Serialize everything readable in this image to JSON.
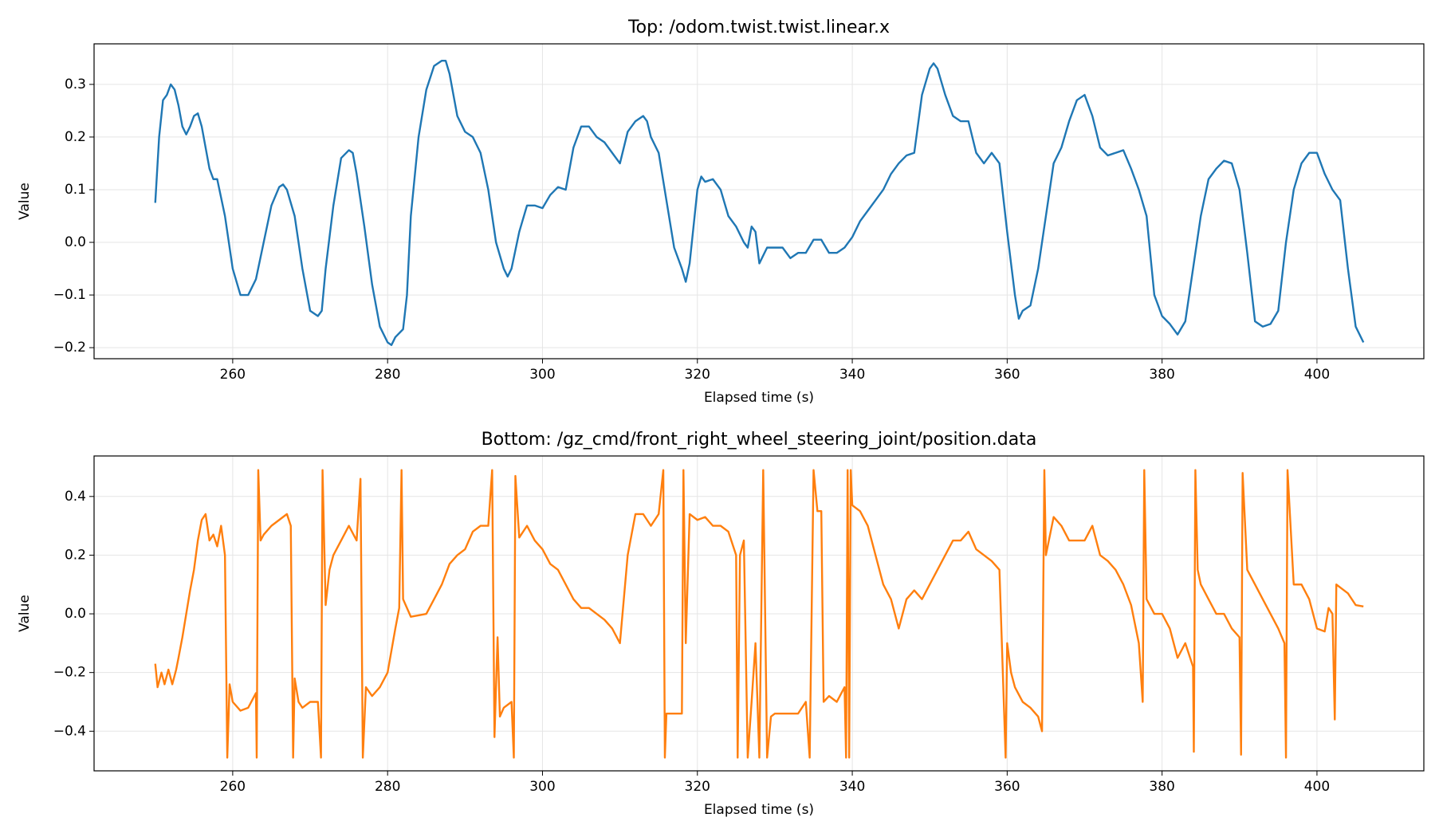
{
  "chart_data": [
    {
      "type": "line",
      "title": "Top: /odom.twist.twist.linear.x",
      "x_label": "Elapsed time (s)",
      "y_label": "Value",
      "color": "#1f77b4",
      "grid": true,
      "xlim": [
        242.1,
        413.8
      ],
      "ylim": [
        -0.221,
        0.377
      ],
      "xticks": [
        260,
        280,
        300,
        320,
        340,
        360,
        380,
        400
      ],
      "yticks": [
        {
          "value": -0.2,
          "label": "−0.2"
        },
        {
          "value": -0.1,
          "label": "−0.1"
        },
        {
          "value": 0,
          "label": "0.0"
        },
        {
          "value": 0.1,
          "label": "0.1"
        },
        {
          "value": 0.2,
          "label": "0.2"
        },
        {
          "value": 0.3,
          "label": "0.3"
        }
      ],
      "x": [
        250,
        250.5,
        251,
        251.5,
        252,
        252.5,
        253,
        253.5,
        254,
        254.5,
        255,
        255.5,
        256,
        257,
        257.5,
        258,
        259,
        260,
        261,
        262,
        263,
        264,
        265,
        266,
        266.5,
        267,
        268,
        269,
        270,
        271,
        271.5,
        272,
        273,
        274,
        275,
        275.5,
        276,
        277,
        278,
        279,
        280,
        280.5,
        281,
        282,
        282.5,
        283,
        284,
        285,
        286,
        287,
        287.5,
        288,
        289,
        290,
        291,
        292,
        293,
        294,
        295,
        295.5,
        296,
        297,
        298,
        299,
        300,
        301,
        302,
        303,
        304,
        305,
        306,
        307,
        308,
        309,
        310,
        311,
        312,
        313,
        313.5,
        314,
        315,
        316,
        317,
        318,
        318.5,
        319,
        320,
        320.5,
        321,
        322,
        323,
        324,
        325,
        326,
        326.5,
        327,
        327.5,
        328,
        329,
        330,
        331,
        332,
        333,
        334,
        335,
        336,
        337,
        338,
        339,
        340,
        341,
        342,
        343,
        344,
        345,
        346,
        347,
        348,
        349,
        350,
        350.5,
        351,
        352,
        353,
        354,
        355,
        356,
        357,
        358,
        359,
        360,
        361,
        361.5,
        362,
        363,
        364,
        365,
        366,
        367,
        368,
        369,
        370,
        371,
        372,
        373,
        374,
        375,
        376,
        377,
        378,
        379,
        380,
        381,
        382,
        383,
        384,
        385,
        386,
        387,
        388,
        389,
        390,
        391,
        392,
        393,
        394,
        395,
        396,
        397,
        398,
        399,
        400,
        401,
        402,
        403,
        404,
        405,
        406
      ],
      "values": [
        0.075,
        0.2,
        0.27,
        0.28,
        0.3,
        0.29,
        0.26,
        0.22,
        0.205,
        0.22,
        0.24,
        0.245,
        0.22,
        0.14,
        0.12,
        0.12,
        0.05,
        -0.05,
        -0.1,
        -0.1,
        -0.07,
        0,
        0.07,
        0.105,
        0.11,
        0.1,
        0.05,
        -0.05,
        -0.13,
        -0.14,
        -0.13,
        -0.05,
        0.07,
        0.16,
        0.175,
        0.17,
        0.13,
        0.03,
        -0.08,
        -0.16,
        -0.19,
        -0.195,
        -0.18,
        -0.165,
        -0.1,
        0.05,
        0.2,
        0.29,
        0.335,
        0.345,
        0.345,
        0.32,
        0.24,
        0.21,
        0.2,
        0.17,
        0.1,
        0,
        -0.05,
        -0.065,
        -0.05,
        0.02,
        0.07,
        0.07,
        0.065,
        0.09,
        0.105,
        0.1,
        0.18,
        0.22,
        0.22,
        0.2,
        0.19,
        0.17,
        0.15,
        0.21,
        0.23,
        0.24,
        0.23,
        0.2,
        0.17,
        0.08,
        -0.01,
        -0.05,
        -0.075,
        -0.04,
        0.1,
        0.125,
        0.115,
        0.12,
        0.1,
        0.05,
        0.03,
        0,
        -0.01,
        0.03,
        0.02,
        -0.04,
        -0.01,
        -0.01,
        -0.01,
        -0.03,
        -0.02,
        -0.02,
        0.005,
        0.005,
        -0.02,
        -0.02,
        -0.01,
        0.01,
        0.04,
        0.06,
        0.08,
        0.1,
        0.13,
        0.15,
        0.165,
        0.17,
        0.28,
        0.33,
        0.34,
        0.33,
        0.28,
        0.24,
        0.23,
        0.23,
        0.17,
        0.15,
        0.17,
        0.15,
        0.02,
        -0.1,
        -0.145,
        -0.13,
        -0.12,
        -0.05,
        0.05,
        0.15,
        0.18,
        0.23,
        0.27,
        0.28,
        0.24,
        0.18,
        0.165,
        0.17,
        0.175,
        0.14,
        0.1,
        0.05,
        -0.1,
        -0.14,
        -0.155,
        -0.175,
        -0.15,
        -0.05,
        0.05,
        0.12,
        0.14,
        0.155,
        0.15,
        0.1,
        -0.02,
        -0.15,
        -0.16,
        -0.155,
        -0.13,
        0,
        0.1,
        0.15,
        0.17,
        0.17,
        0.13,
        0.1,
        0.08,
        -0.05,
        -0.16,
        -0.19
      ]
    },
    {
      "type": "line",
      "title": "Bottom: /gz_cmd/front_right_wheel_steering_joint/position.data",
      "x_label": "Elapsed time (s)",
      "y_label": "Value",
      "color": "#ff7f0e",
      "grid": true,
      "xlim": [
        242.1,
        413.8
      ],
      "ylim": [
        -0.535,
        0.538
      ],
      "xticks": [
        260,
        280,
        300,
        320,
        340,
        360,
        380,
        400
      ],
      "yticks": [
        {
          "value": -0.4,
          "label": "−0.4"
        },
        {
          "value": -0.2,
          "label": "−0.2"
        },
        {
          "value": 0,
          "label": "0.0"
        },
        {
          "value": 0.2,
          "label": "0.2"
        },
        {
          "value": 0.4,
          "label": "0.4"
        }
      ],
      "x": [
        250,
        250.3,
        250.8,
        251.2,
        251.7,
        252.2,
        252.7,
        253,
        253.5,
        254,
        254.5,
        255,
        255.5,
        256,
        256.5,
        257,
        257.5,
        258,
        258.5,
        259,
        259.3,
        259.6,
        260,
        261,
        262,
        263,
        263.1,
        263.3,
        263.6,
        264,
        265,
        266,
        267,
        267.5,
        267.8,
        268,
        268.5,
        269,
        270,
        271,
        271.4,
        271.6,
        272,
        272.5,
        273,
        274,
        275,
        276,
        276.5,
        276.8,
        277.2,
        278,
        279,
        280,
        281,
        281.5,
        281.8,
        282,
        283,
        284,
        285,
        286,
        287,
        288,
        289,
        290,
        291,
        292,
        293,
        293.5,
        293.8,
        294,
        294.2,
        294.5,
        295,
        296,
        296.3,
        296.5,
        297,
        298,
        299,
        300,
        301,
        302,
        303,
        304,
        305,
        306,
        307,
        308,
        309,
        310,
        311,
        312,
        313,
        314,
        315,
        315.6,
        315.8,
        316,
        317,
        318,
        318.2,
        318.5,
        319,
        320,
        321,
        322,
        323,
        324,
        325,
        325.2,
        325.5,
        326,
        326.5,
        327,
        327.5,
        328,
        328.5,
        329,
        329.5,
        330,
        331,
        332,
        333,
        334,
        334.5,
        335,
        335.5,
        336,
        336.3,
        337,
        338,
        339,
        339.2,
        339.4,
        339.6,
        339.8,
        340,
        341,
        342,
        343,
        344,
        345,
        346,
        347,
        348,
        349,
        350,
        351,
        352,
        353,
        354,
        355,
        356,
        357,
        358,
        359,
        359.8,
        360,
        360.5,
        361,
        362,
        363,
        364,
        364.5,
        364.8,
        365,
        366,
        367,
        368,
        369,
        370,
        371,
        372,
        373,
        374,
        375,
        376,
        377,
        377.5,
        377.7,
        378,
        379,
        380,
        381,
        382,
        383,
        384,
        384.1,
        384.3,
        384.6,
        385,
        386,
        387,
        388,
        389,
        390,
        390.2,
        390.4,
        391,
        392,
        393,
        394,
        395,
        395.8,
        396,
        396.2,
        397,
        398,
        399,
        400,
        401,
        401.5,
        402,
        402.3,
        402.5,
        403,
        404,
        405,
        406
      ],
      "values": [
        -0.17,
        -0.25,
        -0.2,
        -0.24,
        -0.19,
        -0.24,
        -0.19,
        -0.15,
        -0.08,
        0,
        0.08,
        0.15,
        0.25,
        0.32,
        0.34,
        0.25,
        0.27,
        0.23,
        0.3,
        0.2,
        -0.49,
        -0.24,
        -0.3,
        -0.33,
        -0.32,
        -0.27,
        -0.49,
        0.49,
        0.25,
        0.27,
        0.3,
        0.32,
        0.34,
        0.3,
        -0.49,
        -0.22,
        -0.3,
        -0.32,
        -0.3,
        -0.3,
        -0.49,
        0.49,
        0.03,
        0.15,
        0.2,
        0.25,
        0.3,
        0.25,
        0.46,
        -0.49,
        -0.25,
        -0.28,
        -0.25,
        -0.2,
        -0.05,
        0.02,
        0.49,
        0.05,
        -0.01,
        -0.005,
        0,
        0.05,
        0.1,
        0.17,
        0.2,
        0.22,
        0.28,
        0.3,
        0.3,
        0.49,
        -0.42,
        -0.25,
        -0.08,
        -0.35,
        -0.32,
        -0.3,
        -0.49,
        0.47,
        0.26,
        0.3,
        0.25,
        0.22,
        0.17,
        0.15,
        0.1,
        0.05,
        0.02,
        0.02,
        0,
        -0.02,
        -0.05,
        -0.1,
        0.2,
        0.34,
        0.34,
        0.3,
        0.34,
        0.49,
        -0.49,
        -0.34,
        -0.34,
        -0.34,
        0.49,
        -0.1,
        0.34,
        0.32,
        0.33,
        0.3,
        0.3,
        0.28,
        0.2,
        -0.49,
        0.2,
        0.25,
        -0.49,
        -0.3,
        -0.1,
        -0.49,
        0.49,
        -0.49,
        -0.35,
        -0.34,
        -0.34,
        -0.34,
        -0.34,
        -0.3,
        -0.49,
        0.49,
        0.35,
        0.35,
        -0.3,
        -0.28,
        -0.3,
        -0.25,
        -0.49,
        0.49,
        -0.49,
        0.49,
        0.37,
        0.35,
        0.3,
        0.2,
        0.1,
        0.05,
        -0.05,
        0.05,
        0.08,
        0.05,
        0.1,
        0.15,
        0.2,
        0.25,
        0.25,
        0.28,
        0.22,
        0.2,
        0.18,
        0.15,
        -0.49,
        -0.1,
        -0.2,
        -0.25,
        -0.3,
        -0.32,
        -0.35,
        -0.4,
        0.49,
        0.2,
        0.33,
        0.3,
        0.25,
        0.25,
        0.25,
        0.3,
        0.2,
        0.18,
        0.15,
        0.1,
        0.03,
        -0.1,
        -0.3,
        0.49,
        0.05,
        0,
        0,
        -0.05,
        -0.15,
        -0.1,
        -0.18,
        -0.47,
        0.49,
        0.15,
        0.1,
        0.05,
        0,
        0,
        -0.05,
        -0.08,
        -0.48,
        0.48,
        0.15,
        0.1,
        0.05,
        0,
        -0.05,
        -0.1,
        -0.49,
        0.49,
        0.1,
        0.1,
        0.05,
        -0.05,
        -0.06,
        0.02,
        0,
        -0.36,
        0.1,
        0.09,
        0.07,
        0.03,
        0.025
      ]
    }
  ]
}
